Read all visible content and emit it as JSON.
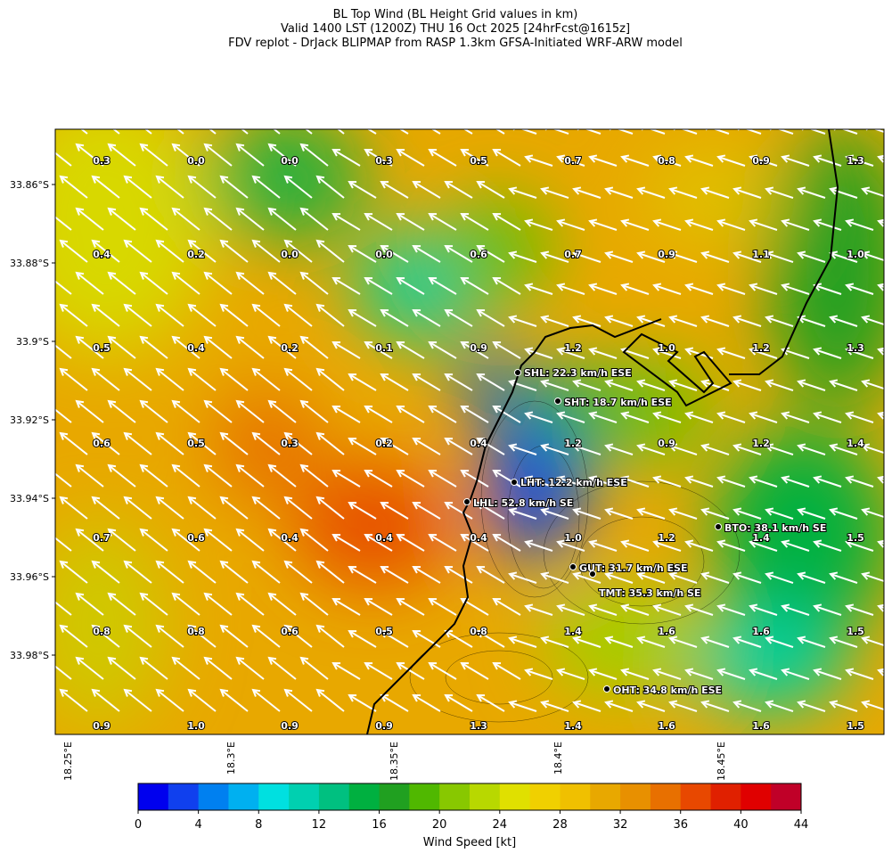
{
  "header": {
    "title": [
      "BL Top Wind (BL Height Grid values in km)",
      "Valid 1400 LST (1200Z) THU 16 Oct 2025 [24hrFcst@1615z]",
      "FDV replot - DrJack BLIPMAP from RASP 1.3km GFSA-Initiated WRF-ARW model"
    ]
  },
  "axes": {
    "lat": [
      "33.86°S",
      "33.88°S",
      "33.9°S",
      "33.92°S",
      "33.94°S",
      "33.96°S",
      "33.98°S"
    ],
    "lon": [
      "18.25°E",
      "18.3°E",
      "18.35°E",
      "18.4°E",
      "18.45°E"
    ]
  },
  "grid_values": [
    [
      "0.3",
      "0.0",
      "0.0",
      "0.3",
      "0.5",
      "0.7",
      "0.8",
      "0.9",
      "1.3"
    ],
    [
      "0.4",
      "0.2",
      "0.0",
      "0.0",
      "0.6",
      "0.7",
      "0.9",
      "1.1",
      "1.0"
    ],
    [
      "0.5",
      "0.4",
      "0.2",
      "0.1",
      "0.9",
      "1.2",
      "1.0",
      "1.2",
      "1.3"
    ],
    [
      "0.6",
      "0.5",
      "0.3",
      "0.2",
      "0.4",
      "1.2",
      "0.9",
      "1.2",
      "1.4"
    ],
    [
      "0.7",
      "0.6",
      "0.4",
      "0.4",
      "0.4",
      "1.0",
      "1.2",
      "1.4",
      "1.5"
    ],
    [
      "0.8",
      "0.8",
      "0.6",
      "0.5",
      "0.8",
      "1.4",
      "1.6",
      "1.6",
      "1.5"
    ],
    [
      "0.9",
      "1.0",
      "0.9",
      "0.9",
      "1.3",
      "1.4",
      "1.6",
      "1.6",
      "1.5"
    ]
  ],
  "stations": [
    "SHL: 22.3 km/h ESE",
    "SHT: 18.7 km/h ESE",
    "LHT: 12.2 km/h ESE",
    "LHL: 52.8 km/h SE",
    "BTO: 38.1 km/h SE",
    "GUT: 31.7 km/h ESE",
    "TMT: 35.3 km/h SE",
    "OHT: 34.8 km/h ESE"
  ],
  "colorbar": {
    "label": "Wind Speed [kt]",
    "ticks": [
      0,
      4,
      8,
      12,
      16,
      20,
      24,
      28,
      32,
      36,
      40,
      44
    ],
    "range": [
      0,
      44
    ],
    "colors": [
      "#0000ee",
      "#1040ee",
      "#0080f0",
      "#00b0f0",
      "#00e0e0",
      "#00d0b0",
      "#00c080",
      "#00b040",
      "#20a020",
      "#50b800",
      "#88c800",
      "#b8d800",
      "#e0e000",
      "#f0d000",
      "#f0c000",
      "#e8a800",
      "#e89000",
      "#e87000",
      "#e84800",
      "#e02000",
      "#e00000",
      "#c00028"
    ]
  }
}
